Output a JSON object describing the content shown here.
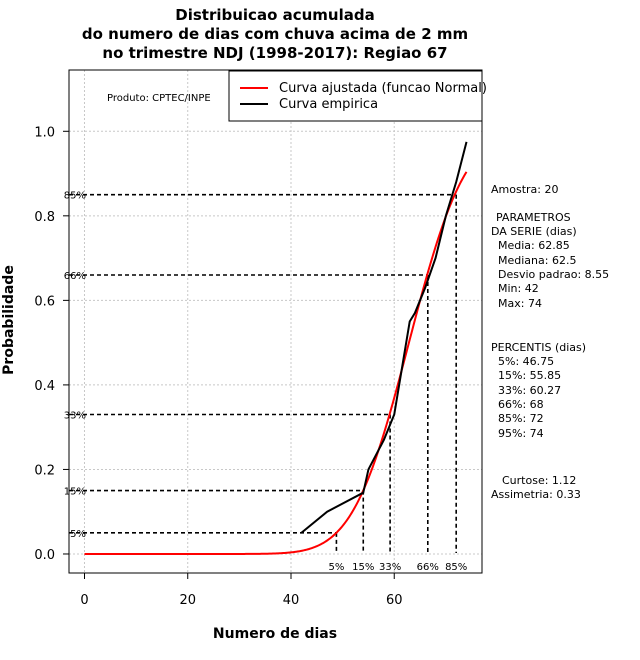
{
  "chart_data": {
    "type": "line",
    "title_lines": [
      "Distribuicao acumulada",
      "do numero de dias com chuva acima de 2 mm",
      "no trimestre NDJ (1998-2017): Regiao 67"
    ],
    "xlabel": "Numero de dias",
    "ylabel": "Probabilidade",
    "xlim": [
      -3,
      77
    ],
    "ylim": [
      -0.045,
      1.145
    ],
    "x_ticks": [
      0,
      20,
      40,
      60
    ],
    "y_ticks": [
      0.0,
      0.2,
      0.4,
      0.6,
      0.8,
      1.0
    ],
    "x_tick_labels": [
      "0",
      "20",
      "40",
      "60"
    ],
    "y_tick_labels": [
      "0.0",
      "0.2",
      "0.4",
      "0.6",
      "0.8",
      "1.0"
    ],
    "grid": true,
    "producer": "Produto: CPTEC/INPE",
    "legend": {
      "position": "top-right",
      "entries": [
        {
          "label": "Curva ajustada (funcao Normal)",
          "color": "#ff0000"
        },
        {
          "label": "Curva empirica",
          "color": "#000000"
        }
      ]
    },
    "series": [
      {
        "name": "Curva ajustada (funcao Normal)",
        "color": "#ff0000",
        "distribution": "normal",
        "mean": 62.85,
        "sd": 8.55,
        "x_range": [
          0,
          74
        ]
      },
      {
        "name": "Curva empirica",
        "color": "#000000",
        "x": [
          42,
          47,
          54,
          55,
          58,
          60,
          63,
          64,
          66,
          68,
          70,
          72,
          74
        ],
        "y": [
          0.05,
          0.1,
          0.145,
          0.2,
          0.27,
          0.33,
          0.55,
          0.57,
          0.63,
          0.7,
          0.8,
          0.88,
          0.975
        ]
      }
    ],
    "percentile_markers": [
      {
        "label": "5%",
        "prob": 0.05,
        "x": 48.8
      },
      {
        "label": "15%",
        "prob": 0.15,
        "x": 54.0
      },
      {
        "label": "33%",
        "prob": 0.33,
        "x": 59.2
      },
      {
        "label": "66%",
        "prob": 0.66,
        "x": 66.5
      },
      {
        "label": "85%",
        "prob": 0.85,
        "x": 72.0
      }
    ],
    "side_panel": {
      "sample": "Amostra: 20",
      "params_title": [
        "PARAMETROS",
        "DA SERIE (dias)"
      ],
      "params": [
        "Media: 62.85",
        "Mediana: 62.5",
        "Desvio padrao: 8.55",
        "Min: 42",
        "Max: 74"
      ],
      "percentis_title": "PERCENTIS (dias)",
      "percentis": [
        "5%: 46.75",
        "15%: 55.85",
        "33%: 60.27",
        "66%: 68",
        "85%: 72",
        "95%: 74"
      ],
      "curtose": "Curtose: 1.12",
      "assimetria": "Assimetria: 0.33"
    }
  }
}
